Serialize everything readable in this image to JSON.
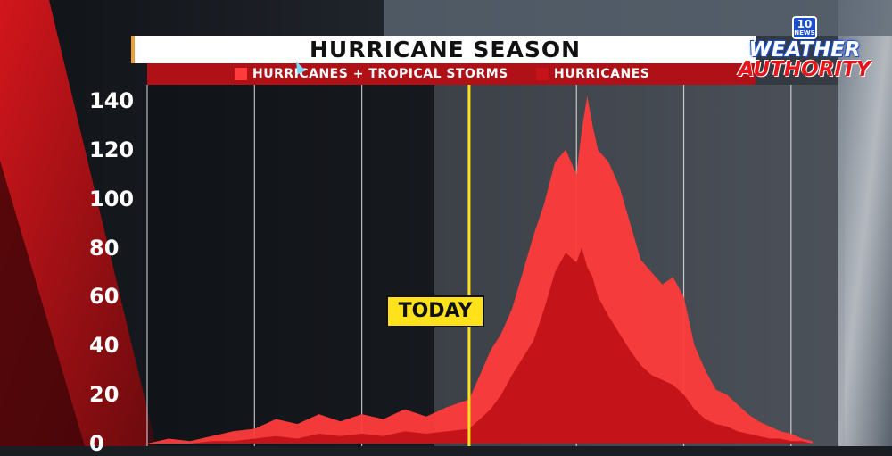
{
  "header": {
    "title": "HURRICANE SEASON",
    "logo_top": "WEATHER",
    "logo_bottom": "AUTHORITY",
    "badge_number": "10",
    "badge_text": "NEWS"
  },
  "today_label": "TODAY",
  "colors": {
    "background": "#1a1d22",
    "legend_bar": "#b01116",
    "storms": "#ff3b3b",
    "hurricanes": "#c4141a",
    "today_line": "#ffe21a",
    "title_accent": "#e7a23b"
  },
  "chart_data": {
    "type": "area",
    "title": "HURRICANE SEASON",
    "xlabel": "",
    "ylabel": "",
    "xlim": [
      0,
      6.5
    ],
    "ylim": [
      0,
      145
    ],
    "yticks": [
      0,
      20,
      40,
      60,
      80,
      100,
      120,
      140
    ],
    "today_x": 3.0,
    "grid": true,
    "legend_position": "top-center",
    "series": [
      {
        "name": "HURRICANES + TROPICAL STORMS",
        "color": "#ff3b3b",
        "x": [
          0.0,
          0.2,
          0.4,
          0.6,
          0.8,
          1.0,
          1.2,
          1.4,
          1.6,
          1.8,
          2.0,
          2.2,
          2.4,
          2.6,
          2.8,
          3.0,
          3.1,
          3.2,
          3.3,
          3.4,
          3.5,
          3.6,
          3.7,
          3.8,
          3.9,
          4.0,
          4.05,
          4.1,
          4.15,
          4.2,
          4.3,
          4.4,
          4.5,
          4.6,
          4.7,
          4.8,
          4.9,
          5.0,
          5.1,
          5.2,
          5.3,
          5.4,
          5.5,
          5.6,
          5.7,
          5.8,
          5.9,
          6.0,
          6.1,
          6.2
        ],
        "values": [
          0,
          2,
          1,
          3,
          5,
          6,
          10,
          8,
          12,
          9,
          12,
          10,
          14,
          11,
          15,
          18,
          28,
          38,
          45,
          55,
          70,
          85,
          98,
          115,
          120,
          110,
          128,
          142,
          130,
          120,
          115,
          105,
          90,
          75,
          70,
          65,
          68,
          60,
          40,
          30,
          22,
          20,
          16,
          12,
          9,
          7,
          5,
          4,
          2,
          1
        ]
      },
      {
        "name": "HURRICANES",
        "color": "#c4141a",
        "x": [
          0.0,
          0.2,
          0.4,
          0.6,
          0.8,
          1.0,
          1.2,
          1.4,
          1.6,
          1.8,
          2.0,
          2.2,
          2.4,
          2.6,
          2.8,
          3.0,
          3.1,
          3.2,
          3.3,
          3.4,
          3.5,
          3.6,
          3.7,
          3.8,
          3.9,
          4.0,
          4.05,
          4.1,
          4.15,
          4.2,
          4.3,
          4.4,
          4.5,
          4.6,
          4.7,
          4.8,
          4.9,
          5.0,
          5.1,
          5.2,
          5.3,
          5.4,
          5.5,
          5.6,
          5.7,
          5.8,
          5.9,
          6.0,
          6.1,
          6.2
        ],
        "values": [
          0,
          0,
          0,
          1,
          1,
          2,
          3,
          2,
          4,
          3,
          4,
          3,
          5,
          4,
          5,
          6,
          10,
          14,
          20,
          28,
          35,
          42,
          55,
          70,
          78,
          74,
          80,
          72,
          68,
          60,
          52,
          45,
          38,
          32,
          28,
          26,
          24,
          20,
          14,
          10,
          8,
          7,
          5,
          4,
          3,
          2,
          2,
          1,
          1,
          0
        ]
      }
    ]
  }
}
